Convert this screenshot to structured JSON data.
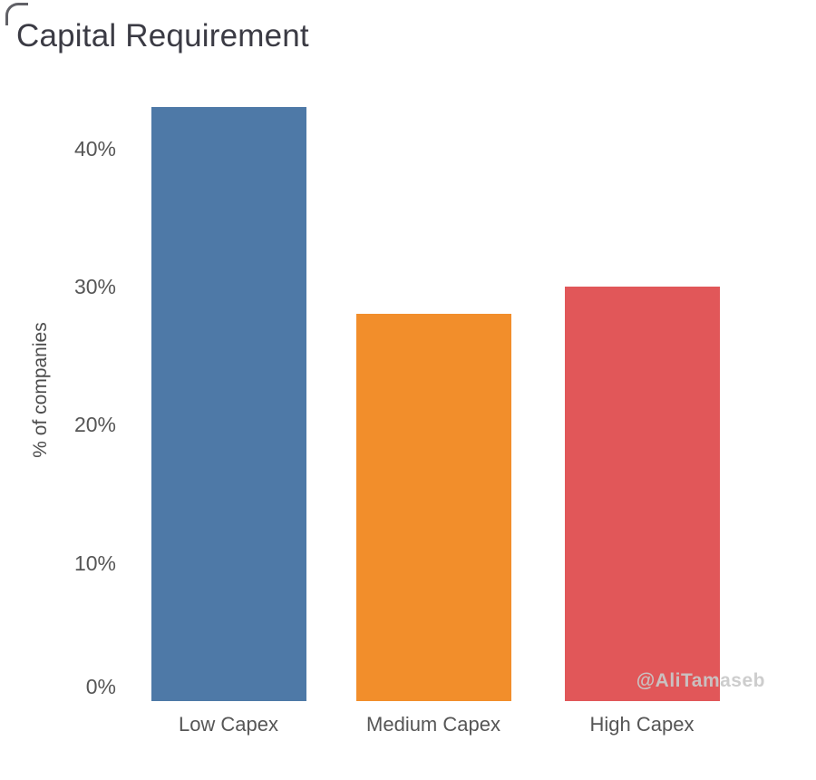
{
  "page": {
    "background": "#ffffff",
    "watermark": "@AliTamaseb"
  },
  "chart_data": {
    "type": "bar",
    "title": "Capital Requirement",
    "ylabel": "% of companies",
    "xlabel": "",
    "categories": [
      "Low Capex",
      "Medium Capex",
      "High Capex"
    ],
    "values": [
      43,
      28,
      30
    ],
    "value_unit": "%",
    "bar_colors": [
      "#4e79a7",
      "#f28e2b",
      "#e15759"
    ],
    "yticks": [
      0,
      10,
      20,
      30,
      40
    ],
    "ytick_suffix": "%",
    "ytick_labels": [
      "0%",
      "10%",
      "20%",
      "30%",
      "40%"
    ],
    "ylim": [
      0,
      43
    ],
    "grid": false,
    "legend": false,
    "text_colors": {
      "title": "#3b3b44",
      "axis": "#565656",
      "watermark": "#c9c9c9"
    }
  }
}
